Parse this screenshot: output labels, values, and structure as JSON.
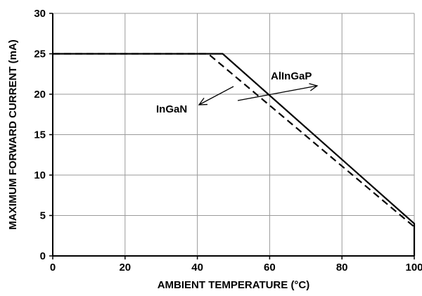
{
  "chart_data": {
    "type": "line",
    "title": "",
    "xlabel": "AMBIENT TEMPERATURE (°C)",
    "ylabel": "MAXIMUM FORWARD CURRENT (mA)",
    "xlim": [
      0,
      100
    ],
    "ylim": [
      0,
      30
    ],
    "x_ticks": [
      0,
      20,
      40,
      60,
      80,
      100
    ],
    "y_ticks": [
      0,
      5,
      10,
      15,
      20,
      25,
      30
    ],
    "x_tick_labels": [
      "0",
      "20",
      "40",
      "60",
      "80",
      "100"
    ],
    "y_tick_labels": [
      "0",
      "5",
      "10",
      "15",
      "20",
      "25",
      "30"
    ],
    "grid": true,
    "legend": "none",
    "series": [
      {
        "name": "AlInGaP",
        "style": "solid",
        "color": "#000000",
        "points": [
          [
            0,
            25
          ],
          [
            47,
            25
          ],
          [
            100,
            4
          ],
          [
            100,
            0
          ]
        ]
      },
      {
        "name": "InGaN",
        "style": "dashed",
        "color": "#000000",
        "points": [
          [
            0,
            25
          ],
          [
            43,
            25
          ],
          [
            100,
            3.6
          ]
        ]
      }
    ],
    "annotations": [
      {
        "text": "AlInGaP",
        "series": "AlInGaP"
      },
      {
        "text": "InGaN",
        "series": "InGaN"
      }
    ]
  }
}
